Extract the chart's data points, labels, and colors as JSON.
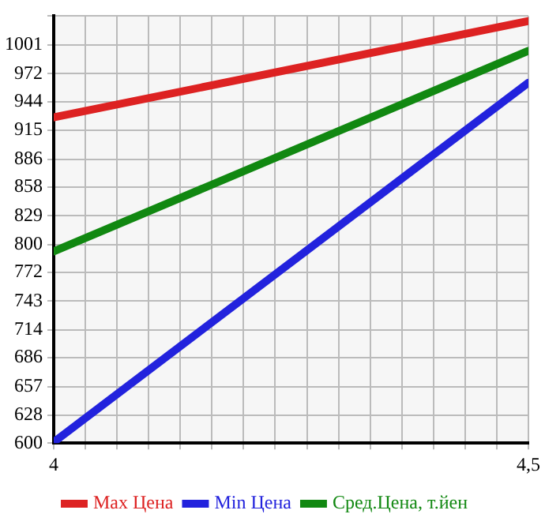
{
  "chart_data": {
    "type": "line",
    "x": [
      4,
      4.5
    ],
    "series": [
      {
        "name": "Max Цена",
        "color": "#dd2222",
        "values": [
          928,
          1025
        ]
      },
      {
        "name": "Min Цена",
        "color": "#2222dd",
        "values": [
          601,
          963
        ]
      },
      {
        "name": "Сред.Цена, т.йен",
        "color": "#118811",
        "values": [
          793,
          995
        ]
      }
    ],
    "xlim": [
      4,
      4.5
    ],
    "xticks": [
      4,
      {
        "value": 4.0333,
        "label": null
      },
      {
        "value": 4.0667,
        "label": null
      },
      {
        "value": 4.1,
        "label": null
      },
      {
        "value": 4.1333,
        "label": null
      },
      {
        "value": 4.1667,
        "label": null
      },
      {
        "value": 4.2,
        "label": null
      },
      {
        "value": 4.2333,
        "label": null
      },
      {
        "value": 4.2667,
        "label": null
      },
      {
        "value": 4.3,
        "label": null
      },
      {
        "value": 4.3333,
        "label": null
      },
      {
        "value": 4.3667,
        "label": null
      },
      {
        "value": 4.4,
        "label": null
      },
      {
        "value": 4.4333,
        "label": null
      },
      {
        "value": 4.4667,
        "label": null
      },
      {
        "value": 4.5,
        "label": "4,5"
      }
    ],
    "ylim": [
      600,
      1030
    ],
    "yticks": [
      600,
      628,
      657,
      686,
      714,
      743,
      772,
      800,
      829,
      858,
      886,
      915,
      944,
      972,
      1001,
      {
        "value": 1030,
        "label": null
      }
    ],
    "grid": true,
    "legend": "bottom",
    "marker": "none",
    "line_style": "solid"
  }
}
